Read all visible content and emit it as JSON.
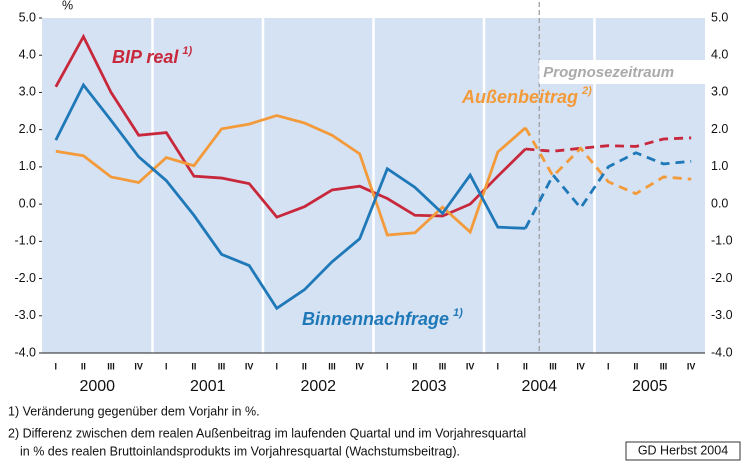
{
  "chart_data": {
    "type": "line",
    "unit": "%",
    "categories": [
      "I",
      "II",
      "III",
      "IV",
      "I",
      "II",
      "III",
      "IV",
      "I",
      "II",
      "III",
      "IV",
      "I",
      "II",
      "III",
      "IV",
      "I",
      "II",
      "III",
      "IV",
      "I",
      "II",
      "III",
      "IV"
    ],
    "years": [
      "2000",
      "2001",
      "2002",
      "2003",
      "2004",
      "2005"
    ],
    "series": [
      {
        "name": "BIP real",
        "note": "1)",
        "color": "#c8283c",
        "values": [
          3.15,
          4.5,
          3.0,
          1.85,
          1.92,
          0.75,
          0.7,
          0.55,
          -0.35,
          -0.07,
          0.38,
          0.48,
          0.15,
          -0.3,
          -0.32,
          0.0,
          0.75,
          1.48,
          1.42,
          1.5,
          1.57,
          1.55,
          1.75,
          1.78
        ]
      },
      {
        "name": "Außenbeitrag",
        "note": "2)",
        "color": "#f39a3a",
        "values": [
          1.42,
          1.3,
          0.73,
          0.58,
          1.25,
          1.03,
          2.02,
          2.15,
          2.38,
          2.18,
          1.85,
          1.35,
          -0.83,
          -0.77,
          -0.08,
          -0.75,
          1.4,
          2.05,
          0.75,
          1.5,
          0.6,
          0.28,
          0.73,
          0.67
        ]
      },
      {
        "name": "Binnennachfrage",
        "note": "1)",
        "color": "#1f78b8",
        "values": [
          1.72,
          3.2,
          2.25,
          1.27,
          0.63,
          -0.3,
          -1.35,
          -1.65,
          -2.8,
          -2.3,
          -1.55,
          -0.93,
          0.95,
          0.45,
          -0.25,
          0.78,
          -0.62,
          -0.65,
          0.78,
          -0.1,
          1.0,
          1.38,
          1.08,
          1.15
        ]
      }
    ],
    "forecast_label": "Prognosezeitraum",
    "ylim": [
      -4,
      5
    ],
    "yticks": [
      {
        "value": -4,
        "label": "-4.0"
      },
      {
        "value": -3,
        "label": "-3.0"
      },
      {
        "value": -2,
        "label": "-2.0"
      },
      {
        "value": -1,
        "label": "-1.0"
      },
      {
        "value": 0,
        "label": "0.0"
      },
      {
        "value": 1,
        "label": "1.0"
      },
      {
        "value": 2,
        "label": "2.0"
      },
      {
        "value": 3,
        "label": "3.0"
      },
      {
        "value": 4,
        "label": "4.0"
      },
      {
        "value": 5,
        "label": "5.0"
      }
    ],
    "footnotes": [
      "1) Veränderung gegenüber dem Vorjahr in %.",
      "2) Differenz zwischen dem realen Außenbeitrag im laufenden Quartal und im Vorjahresquartal",
      "in % des realen Bruttoinlandsprodukts im Vorjahresquartal (Wachstumsbeitrag)."
    ],
    "source": "GD Herbst 2004"
  }
}
